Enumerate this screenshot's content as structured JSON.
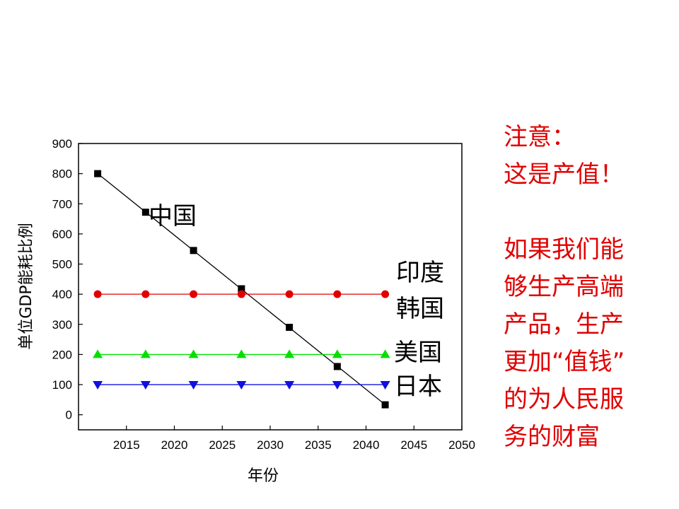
{
  "chart_data": {
    "type": "line",
    "xlabel": "年份",
    "ylabel": "单位GDP能耗比例",
    "xlim": [
      2010,
      2050
    ],
    "ylim": [
      -50,
      900
    ],
    "x_ticks": [
      2015,
      2020,
      2025,
      2030,
      2035,
      2040,
      2045,
      2050
    ],
    "y_ticks": [
      0,
      100,
      200,
      300,
      400,
      500,
      600,
      700,
      800,
      900
    ],
    "grid": false,
    "x": [
      2012,
      2017,
      2022,
      2027,
      2032,
      2037,
      2042
    ],
    "series": [
      {
        "name": "中国",
        "values": [
          800,
          672,
          545,
          418,
          290,
          160,
          33
        ],
        "color": "#000000",
        "marker": "square",
        "line": "fit"
      },
      {
        "name": "印度 韩国",
        "values": [
          400,
          400,
          400,
          400,
          400,
          400,
          400
        ],
        "color": "#e00000",
        "marker": "circle",
        "line": "connect"
      },
      {
        "name": "美国",
        "values": [
          200,
          200,
          200,
          200,
          200,
          200,
          200
        ],
        "color": "#00e000",
        "marker": "triangle-up",
        "line": "connect"
      },
      {
        "name": "日本",
        "values": [
          100,
          100,
          100,
          100,
          100,
          100,
          100
        ],
        "color": "#1010e0",
        "marker": "triangle-down",
        "line": "connect"
      }
    ],
    "labels": [
      {
        "text": "中国"
      },
      {
        "text": "印度"
      },
      {
        "text": "韩国"
      },
      {
        "text": "美国"
      },
      {
        "text": "日本"
      }
    ]
  },
  "note": {
    "lines_a": [
      "注意：",
      "这是产值！"
    ],
    "lines_b": [
      "如果我们能",
      "够生产高端",
      "产品，生产",
      "更加“值钱”",
      "的为人民服",
      "务的财富"
    ],
    "color": "#e00000"
  }
}
